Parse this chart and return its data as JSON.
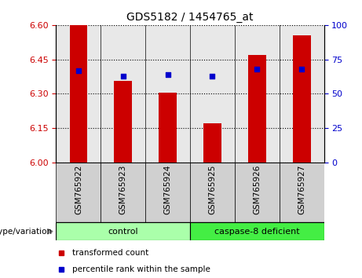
{
  "title": "GDS5182 / 1454765_at",
  "samples": [
    "GSM765922",
    "GSM765923",
    "GSM765924",
    "GSM765925",
    "GSM765926",
    "GSM765927"
  ],
  "transformed_count": [
    6.6,
    6.355,
    6.305,
    6.17,
    6.47,
    6.555
  ],
  "percentile_rank": [
    67,
    63,
    64,
    63,
    68,
    68
  ],
  "ylim_left": [
    6.0,
    6.6
  ],
  "ylim_right": [
    0,
    100
  ],
  "yticks_left": [
    6.0,
    6.15,
    6.3,
    6.45,
    6.6
  ],
  "yticks_right": [
    0,
    25,
    50,
    75,
    100
  ],
  "bar_color": "#cc0000",
  "percentile_color": "#0000cc",
  "bar_width": 0.4,
  "groups": [
    {
      "label": "control",
      "indices": [
        0,
        1,
        2
      ],
      "color": "#aaffaa"
    },
    {
      "label": "caspase-8 deficient",
      "indices": [
        3,
        4,
        5
      ],
      "color": "#44ee44"
    }
  ],
  "group_label_prefix": "genotype/variation",
  "tick_label_color_left": "#cc0000",
  "tick_label_color_right": "#0000cc",
  "legend_items": [
    {
      "label": "transformed count",
      "color": "#cc0000"
    },
    {
      "label": "percentile rank within the sample",
      "color": "#0000cc"
    }
  ],
  "bg_color_plot": "#e8e8e8",
  "bg_color_fig": "#ffffff",
  "grid_color": "#000000",
  "xlabel_bg": "#d0d0d0"
}
